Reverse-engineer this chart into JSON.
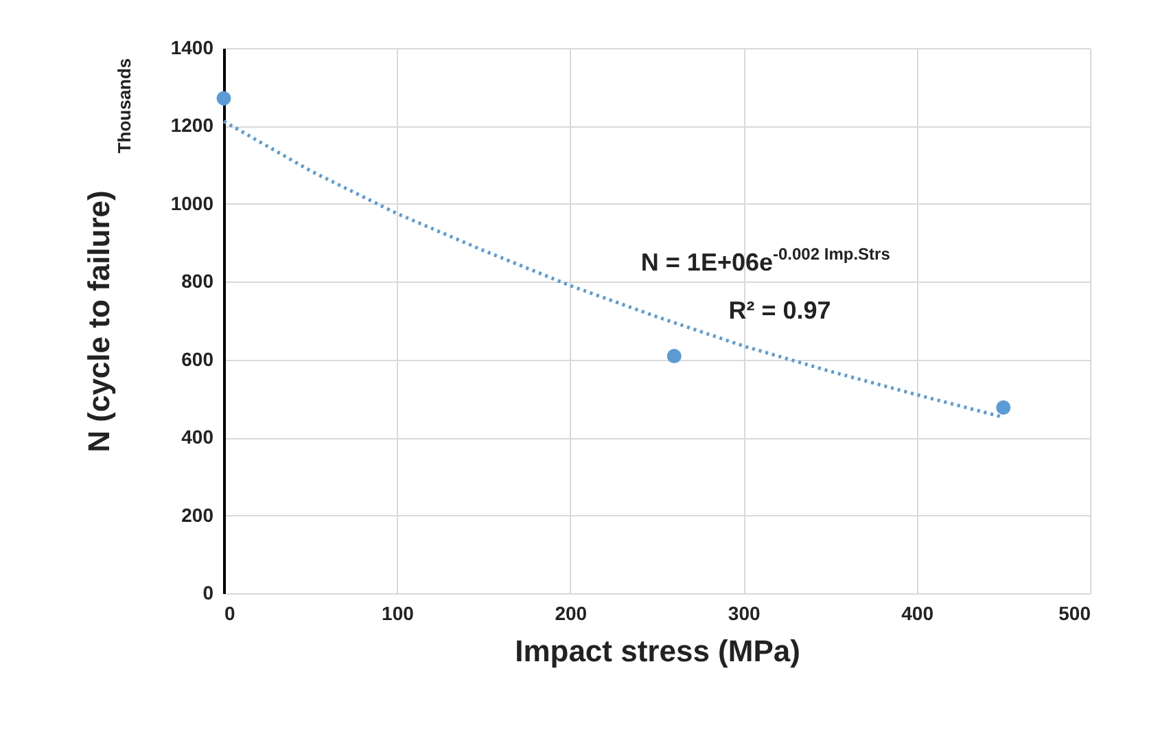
{
  "chart_data": {
    "type": "scatter",
    "xlabel": "Impact stress (MPa)",
    "ylabel": "N (cycle to failure)",
    "annotations": [
      "Thousands",
      "N = 1E+06e$^{-0.002 Imp.Strs}$",
      "R² = 0.97"
    ],
    "series": [
      {
        "color": "#5b9bd5",
        "x": [
          0,
          260,
          450
        ],
        "values": [
          1271,
          609,
          477
        ]
      },
      {
        "type": "line",
        "color": "#5b9bd5",
        "line_style": "dotted",
        "marker": "none",
        "x": [
          0,
          50,
          100,
          150,
          200,
          250,
          300,
          350,
          400,
          450
        ],
        "values": [
          1212,
          1085,
          975,
          880,
          790,
          710,
          635,
          570,
          510,
          452
        ]
      }
    ],
    "xlim": [
      0,
      500
    ],
    "xticks": [
      0,
      100,
      200,
      300,
      400,
      500
    ],
    "ylim": [
      0,
      1400
    ],
    "yticks": [
      0,
      200,
      400,
      600,
      800,
      1000,
      1200,
      1400
    ],
    "grid": true,
    "marker": "circle"
  }
}
